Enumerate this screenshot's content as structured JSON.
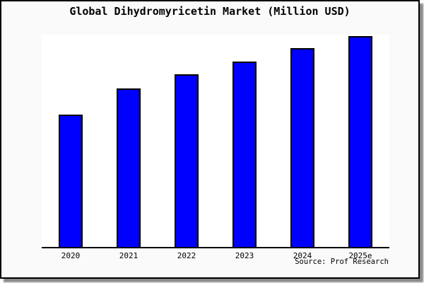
{
  "chart_data": {
    "type": "bar",
    "title": "Global Dihydromyricetin Market (Million USD)",
    "categories": [
      "2020",
      "2021",
      "2022",
      "2023",
      "2024",
      "2025e"
    ],
    "values": [
      62.6,
      75.2,
      81.7,
      87.7,
      94.0,
      100
    ],
    "xlabel": "",
    "ylabel": "",
    "ylim": [
      0,
      100.5
    ],
    "y_axis_labels_shown": false,
    "grid": false,
    "legend": "none",
    "bar_color": "#0000ff",
    "bar_border_color": "#000000",
    "plot_background": "#ffffff",
    "frame_background": "#fafafa",
    "frame_border_color": "#000000"
  },
  "source": {
    "label": "Source: Prof Research"
  }
}
